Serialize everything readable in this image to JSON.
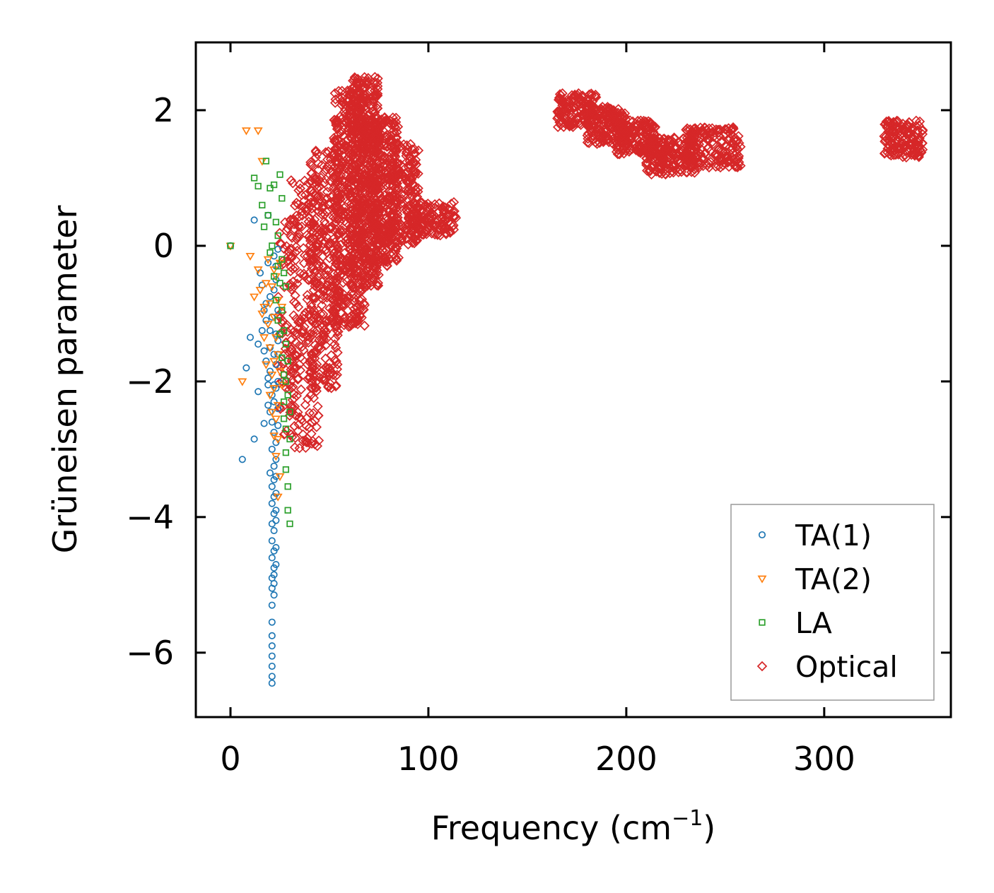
{
  "chart_data": {
    "type": "scatter",
    "title": "",
    "xlabel": "Frequency (cm",
    "xlabel_sup": "−1",
    "xlabel_close": ")",
    "ylabel": "Grüneisen parameter",
    "xlim": [
      -17.5,
      364
    ],
    "ylim": [
      -6.95,
      3.0
    ],
    "xticks": [
      0,
      100,
      200,
      300
    ],
    "xtick_labels": [
      "0",
      "100",
      "200",
      "300"
    ],
    "yticks": [
      2,
      0,
      -2,
      -4,
      -6
    ],
    "ytick_labels": [
      "2",
      "0",
      "−2",
      "−4",
      "−6"
    ],
    "grid": false,
    "legend_position": "lower-right",
    "series": [
      {
        "name": "TA(1)",
        "marker": "circle",
        "color": "#1f77b4",
        "x": [
          0,
          6,
          8,
          10,
          12,
          12,
          14,
          14,
          15,
          16,
          16,
          17,
          17,
          17,
          18,
          18,
          18,
          19,
          19,
          19,
          19,
          19,
          20,
          20,
          20,
          20,
          20,
          20,
          21,
          21,
          21,
          21,
          21,
          21,
          21,
          21,
          21,
          21,
          21,
          21,
          21,
          21,
          21,
          21,
          21,
          21,
          21,
          22,
          22,
          22,
          22,
          22,
          22,
          22,
          22,
          22,
          22,
          22,
          22,
          22,
          22,
          22,
          22,
          23,
          23,
          23,
          23,
          23,
          23,
          23,
          23,
          23,
          23,
          23,
          23,
          23,
          24,
          24,
          24,
          24,
          24,
          24,
          24
        ],
        "y": [
          0.0,
          -3.15,
          -1.8,
          -1.35,
          -2.85,
          0.38,
          -1.45,
          -2.15,
          -0.4,
          -0.58,
          -1.25,
          -0.95,
          -1.55,
          -2.62,
          -0.85,
          -1.1,
          -1.7,
          -2.05,
          -2.35,
          -0.25,
          0.45,
          -1.95,
          -0.75,
          -1.25,
          -1.5,
          -1.85,
          -2.45,
          -3.35,
          -2.6,
          -3.0,
          -3.55,
          -3.8,
          -4.1,
          -4.35,
          -4.6,
          -4.9,
          -5.05,
          -5.3,
          -5.55,
          -5.75,
          -5.9,
          -6.05,
          -6.2,
          -6.35,
          -6.45,
          -1.05,
          -2.2,
          -2.75,
          -3.25,
          -3.45,
          -3.7,
          -3.95,
          -4.2,
          -4.5,
          -4.75,
          -4.85,
          -4.98,
          -5.15,
          -0.15,
          -0.65,
          -1.6,
          -2.05,
          -2.3,
          -2.9,
          -3.15,
          -3.4,
          -3.65,
          -3.9,
          -4.05,
          -4.45,
          -4.7,
          -0.3,
          -1.3,
          -1.75,
          -2.1,
          -0.5,
          -0.95,
          -1.4,
          -1.6,
          -2.0,
          -2.4,
          -2.65,
          -0.05
        ],
        "extra_x": [],
        "extra_y": []
      },
      {
        "name": "TA(2)",
        "marker": "triangle-down",
        "color": "#ff7f0e",
        "x": [
          0,
          6,
          8,
          10,
          12,
          14,
          14,
          15,
          16,
          16,
          17,
          17,
          18,
          18,
          19,
          19,
          20,
          20,
          20,
          21,
          21,
          21,
          22,
          22,
          22,
          22,
          22,
          23,
          23,
          23,
          23,
          24,
          24,
          24,
          24,
          24,
          25,
          25,
          25,
          26,
          26
        ],
        "y": [
          0.0,
          -2.0,
          1.7,
          -0.15,
          -0.75,
          1.7,
          -0.35,
          -0.65,
          1.25,
          -1.0,
          -1.35,
          -0.9,
          -1.75,
          -0.55,
          -0.2,
          -1.15,
          -1.5,
          -0.85,
          -2.2,
          -0.6,
          -1.9,
          -2.45,
          -0.35,
          -1.05,
          -1.7,
          -2.1,
          -2.8,
          -0.45,
          -1.35,
          -2.55,
          -3.1,
          -0.8,
          -1.6,
          -2.35,
          -2.85,
          -3.7,
          -0.25,
          -1.85,
          -3.4,
          -0.9,
          -2.05
        ]
      },
      {
        "name": "LA",
        "marker": "square",
        "color": "#2ca02c",
        "x": [
          0,
          12,
          14,
          16,
          17,
          18,
          19,
          20,
          20,
          21,
          22,
          22,
          23,
          23,
          24,
          24,
          24,
          25,
          25,
          25,
          26,
          26,
          26,
          26,
          27,
          27,
          27,
          27,
          27,
          28,
          28,
          28,
          28,
          28,
          28,
          29,
          29,
          29,
          29,
          30,
          30,
          30
        ],
        "y": [
          0.0,
          1.0,
          0.88,
          0.6,
          0.28,
          1.25,
          0.45,
          0.85,
          -0.1,
          0.0,
          0.9,
          -0.45,
          0.35,
          -0.8,
          0.15,
          -0.3,
          -1.1,
          1.05,
          -0.55,
          -1.3,
          0.7,
          -0.2,
          -0.95,
          -1.65,
          -0.4,
          -1.25,
          -1.9,
          -2.3,
          -2.55,
          -0.6,
          -1.45,
          -2.0,
          -2.7,
          -3.05,
          -3.3,
          -1.7,
          -2.2,
          -3.55,
          -3.9,
          -2.45,
          -2.85,
          -4.1
        ]
      },
      {
        "name": "Optical",
        "marker": "diamond",
        "color": "#d62728",
        "x": [],
        "y": [],
        "note": "dense clusters (see regions) spanning ~20–115 cm⁻¹, ~165–258 cm⁻¹ and ~330–350 cm⁻¹"
      }
    ],
    "optical_regions": [
      {
        "x": [
          24,
          34
        ],
        "y": [
          -2.8,
          0.4
        ],
        "n": 90
      },
      {
        "x": [
          30,
          45
        ],
        "y": [
          -3.0,
          1.0
        ],
        "n": 220
      },
      {
        "x": [
          40,
          55
        ],
        "y": [
          -2.1,
          1.5
        ],
        "n": 300
      },
      {
        "x": [
          52,
          68
        ],
        "y": [
          -1.2,
          2.3
        ],
        "n": 500
      },
      {
        "x": [
          60,
          75
        ],
        "y": [
          -0.6,
          2.5
        ],
        "n": 450
      },
      {
        "x": [
          70,
          85
        ],
        "y": [
          -0.3,
          1.9
        ],
        "n": 360
      },
      {
        "x": [
          80,
          95
        ],
        "y": [
          0.0,
          1.5
        ],
        "n": 200
      },
      {
        "x": [
          90,
          114
        ],
        "y": [
          0.15,
          0.65
        ],
        "n": 140
      },
      {
        "x": [
          165,
          185
        ],
        "y": [
          1.75,
          2.25
        ],
        "n": 150
      },
      {
        "x": [
          180,
          200
        ],
        "y": [
          1.5,
          2.05
        ],
        "n": 160
      },
      {
        "x": [
          195,
          215
        ],
        "y": [
          1.35,
          1.85
        ],
        "n": 160
      },
      {
        "x": [
          210,
          235
        ],
        "y": [
          1.05,
          1.6
        ],
        "n": 200
      },
      {
        "x": [
          230,
          258
        ],
        "y": [
          1.15,
          1.75
        ],
        "n": 180
      },
      {
        "x": [
          330,
          350
        ],
        "y": [
          1.3,
          1.85
        ],
        "n": 150
      }
    ]
  }
}
